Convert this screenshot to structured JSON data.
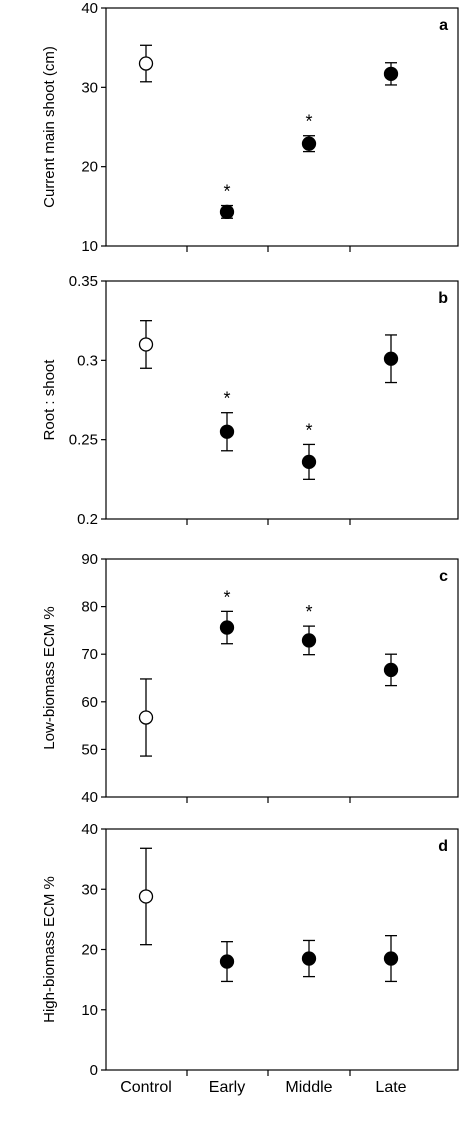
{
  "chart_data": [
    {
      "type": "scatter",
      "panel_letter": "a",
      "ylabel": "Current main shoot (cm)",
      "ylim": [
        10,
        40
      ],
      "yticks": [
        10,
        20,
        30,
        40
      ],
      "ytick_labels": [
        "10",
        "20",
        "30",
        "40"
      ],
      "categories": [
        "Control",
        "Early",
        "Middle",
        "Late"
      ],
      "values": [
        33.0,
        14.3,
        22.9,
        31.7
      ],
      "errors": [
        2.3,
        0.8,
        1.0,
        1.4
      ],
      "filled": [
        false,
        true,
        true,
        true
      ],
      "significant": [
        false,
        true,
        true,
        false
      ],
      "marker": "*",
      "show_category_labels": false
    },
    {
      "type": "scatter",
      "panel_letter": "b",
      "ylabel": "Root : shoot",
      "ylim": [
        0.2,
        0.35
      ],
      "yticks": [
        0.2,
        0.25,
        0.3,
        0.35
      ],
      "ytick_labels": [
        "0.2",
        "0.25",
        "0.3",
        "0.35"
      ],
      "categories": [
        "Control",
        "Early",
        "Middle",
        "Late"
      ],
      "values": [
        0.31,
        0.255,
        0.236,
        0.301
      ],
      "errors": [
        0.015,
        0.012,
        0.011,
        0.015
      ],
      "filled": [
        false,
        true,
        true,
        true
      ],
      "significant": [
        false,
        true,
        true,
        false
      ],
      "marker": "*",
      "show_category_labels": false
    },
    {
      "type": "scatter",
      "panel_letter": "c",
      "ylabel": "Low-biomass ECM %",
      "ylim": [
        40,
        90
      ],
      "yticks": [
        40,
        50,
        60,
        70,
        80,
        90
      ],
      "ytick_labels": [
        "40",
        "50",
        "60",
        "70",
        "80",
        "90"
      ],
      "categories": [
        "Control",
        "Early",
        "Middle",
        "Late"
      ],
      "values": [
        56.7,
        75.6,
        72.9,
        66.7
      ],
      "errors": [
        8.1,
        3.4,
        3.0,
        3.3
      ],
      "filled": [
        false,
        true,
        true,
        true
      ],
      "significant": [
        false,
        true,
        true,
        false
      ],
      "marker": "*",
      "show_category_labels": false
    },
    {
      "type": "scatter",
      "panel_letter": "d",
      "ylabel": "High-biomass ECM %",
      "ylim": [
        0,
        40
      ],
      "yticks": [
        0,
        10,
        20,
        30,
        40
      ],
      "ytick_labels": [
        "0",
        "10",
        "20",
        "30",
        "40"
      ],
      "categories": [
        "Control",
        "Early",
        "Middle",
        "Late"
      ],
      "values": [
        28.8,
        18.0,
        18.5,
        18.5
      ],
      "errors": [
        8.0,
        3.3,
        3.0,
        3.8
      ],
      "filled": [
        false,
        true,
        true,
        true
      ],
      "significant": [
        false,
        false,
        false,
        false
      ],
      "marker": "*",
      "show_category_labels": true
    }
  ]
}
